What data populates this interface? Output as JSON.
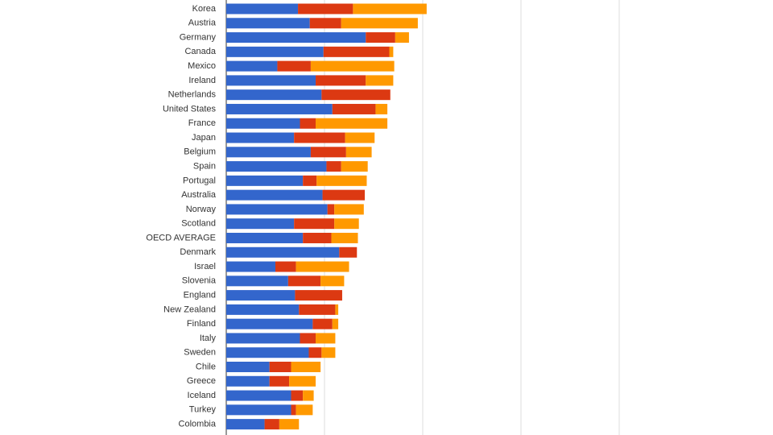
{
  "chart_data": {
    "type": "stacked-bar-horizontal",
    "categories": [
      "Korea",
      "Austria",
      "Germany",
      "Canada",
      "Mexico",
      "Ireland",
      "Netherlands",
      "United States",
      "France",
      "Japan",
      "Belgium",
      "Spain",
      "Portugal",
      "Australia",
      "Norway",
      "Scotland",
      "OECD AVERAGE",
      "Denmark",
      "Israel",
      "Slovenia",
      "England",
      "New Zealand",
      "Finland",
      "Italy",
      "Sweden",
      "Chile",
      "Greece",
      "Iceland",
      "Turkey",
      "Colombia"
    ],
    "series": [
      {
        "color": "#3366cc",
        "values": [
          0.73,
          0.85,
          1.42,
          0.99,
          0.52,
          0.91,
          0.97,
          1.08,
          0.75,
          0.69,
          0.86,
          1.02,
          0.78,
          0.98,
          1.03,
          0.69,
          0.78,
          1.15,
          0.5,
          0.63,
          0.7,
          0.74,
          0.88,
          0.75,
          0.84,
          0.44,
          0.44,
          0.66,
          0.66,
          0.39
        ]
      },
      {
        "color": "#dc3912",
        "values": [
          0.56,
          0.32,
          0.3,
          0.67,
          0.34,
          0.51,
          0.7,
          0.44,
          0.16,
          0.52,
          0.36,
          0.15,
          0.14,
          0.43,
          0.07,
          0.41,
          0.29,
          0.18,
          0.21,
          0.33,
          0.48,
          0.37,
          0.2,
          0.16,
          0.13,
          0.22,
          0.2,
          0.12,
          0.05,
          0.15
        ]
      },
      {
        "color": "#ff9900",
        "values": [
          0.75,
          0.78,
          0.14,
          0.04,
          0.85,
          0.28,
          0,
          0.12,
          0.73,
          0.3,
          0.26,
          0.27,
          0.51,
          0,
          0.3,
          0.25,
          0.27,
          0,
          0.54,
          0.24,
          0,
          0.03,
          0.06,
          0.2,
          0.14,
          0.3,
          0.27,
          0.11,
          0.17,
          0.2
        ]
      }
    ],
    "xlim": [
      0,
      5.5
    ],
    "grid_values": [
      0,
      1,
      2,
      3,
      4
    ],
    "grid": true
  }
}
